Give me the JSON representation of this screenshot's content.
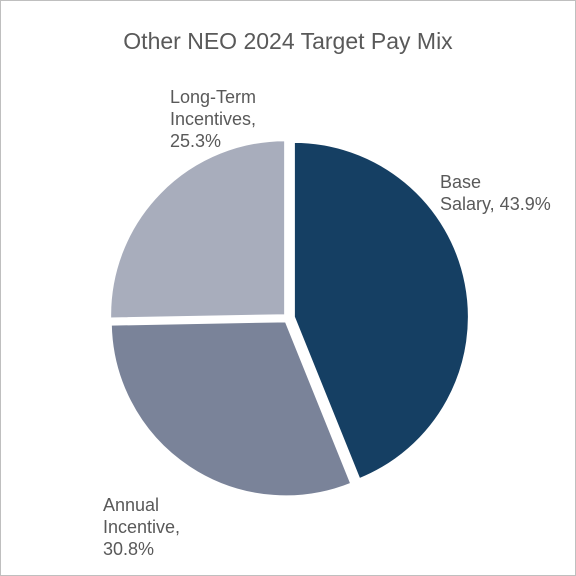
{
  "chart_data": {
    "type": "pie",
    "title": "Other NEO 2024 Target Pay Mix",
    "slices": [
      {
        "name": "Base Salary",
        "value": 43.9,
        "color": "#153f63",
        "label_lines": [
          "Base",
          "Salary, 43.9%"
        ]
      },
      {
        "name": "Annual Incentive",
        "value": 30.8,
        "color": "#7a8399",
        "label_lines": [
          "Annual",
          "Incentive,",
          "30.8%"
        ]
      },
      {
        "name": "Long-Term Incentives",
        "value": 25.3,
        "color": "#a8adbc",
        "label_lines": [
          "Long-Term",
          "Incentives,",
          "25.3%"
        ]
      }
    ],
    "legend": "none"
  }
}
